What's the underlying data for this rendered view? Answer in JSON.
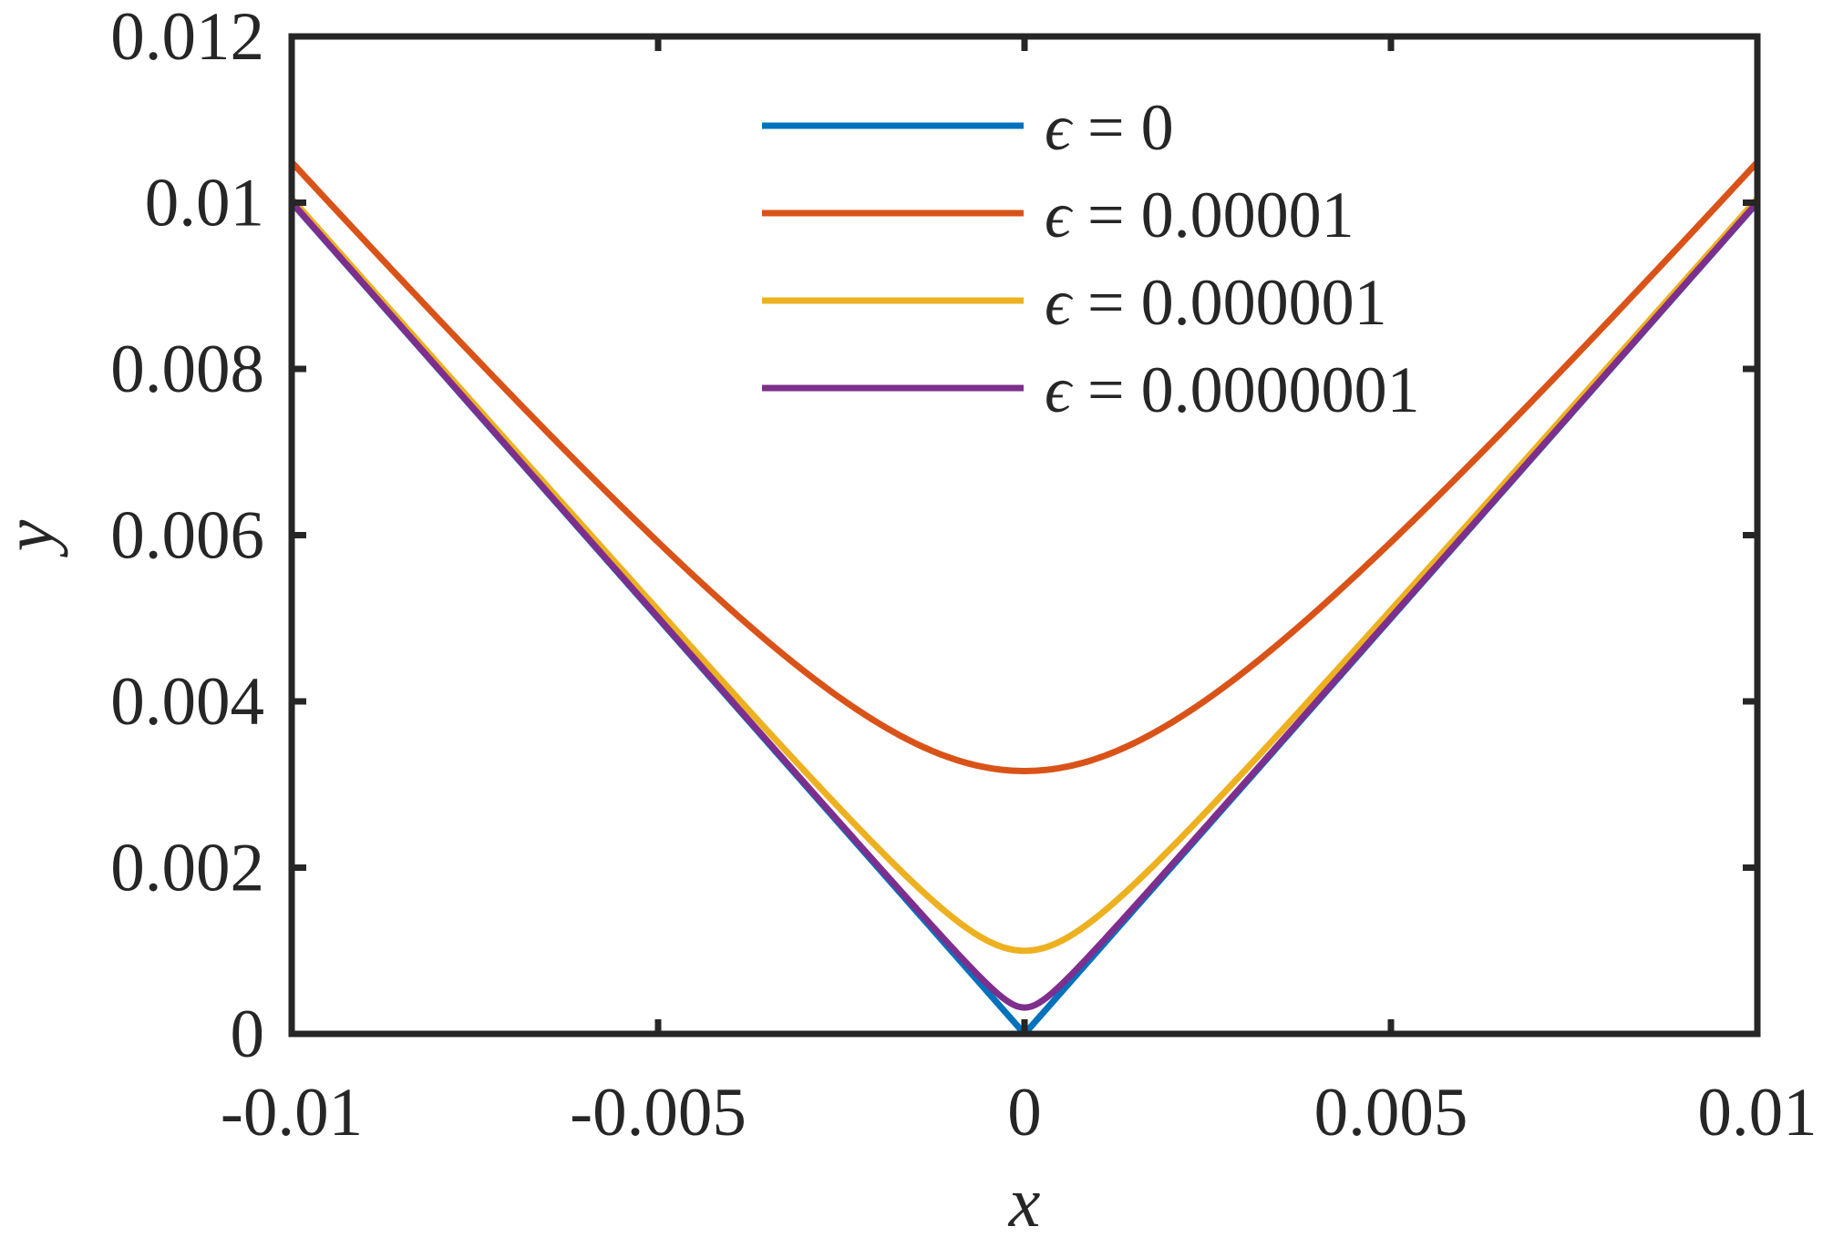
{
  "chart_data": {
    "type": "line",
    "title": "",
    "xlabel": "x",
    "ylabel": "y",
    "xlim": [
      -0.01,
      0.01
    ],
    "ylim": [
      0,
      0.012
    ],
    "x_ticks": [
      -0.01,
      -0.005,
      0,
      0.005,
      0.01
    ],
    "x_tick_labels": [
      "-0.01",
      "-0.005",
      "0",
      "0.005",
      "0.01"
    ],
    "y_ticks": [
      0,
      0.002,
      0.004,
      0.006,
      0.008,
      0.01,
      0.012
    ],
    "y_tick_labels": [
      "0",
      "0.002",
      "0.004",
      "0.006",
      "0.008",
      "0.01",
      "0.012"
    ],
    "grid": false,
    "legend_position": "top-center",
    "legend_symbol": "ϵ",
    "series": [
      {
        "name": "ϵ = 0",
        "label_value": "0",
        "epsilon": 0,
        "color": "#0072BD",
        "x": [
          -0.01,
          -0.005,
          0,
          0.005,
          0.01
        ],
        "y": [
          0.01,
          0.005,
          0,
          0.005,
          0.01
        ]
      },
      {
        "name": "ϵ = 0.00001",
        "label_value": "0.00001",
        "epsilon": 1e-05,
        "color": "#D95319",
        "x": [
          -0.01,
          -0.0075,
          -0.005,
          -0.0025,
          0,
          0.0025,
          0.005,
          0.0075,
          0.01
        ],
        "y": [
          0.01049,
          0.00814,
          0.00592,
          0.00403,
          0.00316,
          0.00403,
          0.00592,
          0.00814,
          0.01049
        ]
      },
      {
        "name": "ϵ = 0.000001",
        "label_value": "0.000001",
        "epsilon": 1e-06,
        "color": "#EDB120",
        "x": [
          -0.01,
          -0.0075,
          -0.005,
          -0.0025,
          -0.001,
          0,
          0.001,
          0.0025,
          0.005,
          0.0075,
          0.01
        ],
        "y": [
          0.01005,
          0.00757,
          0.0051,
          0.00269,
          0.00141,
          0.001,
          0.00141,
          0.00269,
          0.0051,
          0.00757,
          0.01005
        ]
      },
      {
        "name": "ϵ = 0.0000001",
        "label_value": "0.0000001",
        "epsilon": 1e-07,
        "color": "#7E2F8E",
        "x": [
          -0.01,
          -0.005,
          -0.001,
          -0.0003,
          0,
          0.0003,
          0.001,
          0.005,
          0.01
        ],
        "y": [
          0.01,
          0.00501,
          0.00105,
          0.00044,
          0.00032,
          0.00044,
          0.00105,
          0.00501,
          0.01
        ]
      }
    ]
  }
}
